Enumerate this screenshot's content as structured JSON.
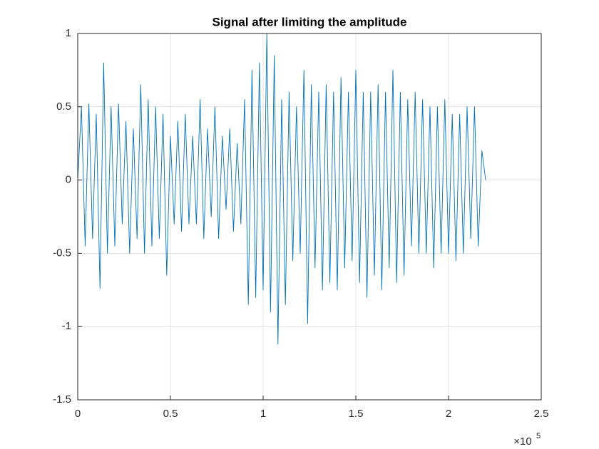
{
  "chart_data": {
    "type": "line",
    "title": "Signal after limiting the amplitude",
    "x": [
      0,
      0.02,
      0.04,
      0.06,
      0.08,
      0.1,
      0.12,
      0.14,
      0.16,
      0.18,
      0.2,
      0.22,
      0.24,
      0.26,
      0.28,
      0.3,
      0.32,
      0.34,
      0.36,
      0.38,
      0.4,
      0.42,
      0.44,
      0.46,
      0.48,
      0.5,
      0.52,
      0.54,
      0.56,
      0.58,
      0.6,
      0.62,
      0.64,
      0.66,
      0.68,
      0.7,
      0.72,
      0.74,
      0.76,
      0.78,
      0.8,
      0.82,
      0.84,
      0.86,
      0.88,
      0.9,
      0.92,
      0.94,
      0.96,
      0.98,
      1,
      1.02,
      1.04,
      1.06,
      1.08,
      1.1,
      1.12,
      1.14,
      1.16,
      1.18,
      1.2,
      1.22,
      1.24,
      1.26,
      1.28,
      1.3,
      1.32,
      1.34,
      1.36,
      1.38,
      1.4,
      1.42,
      1.44,
      1.46,
      1.48,
      1.5,
      1.52,
      1.54,
      1.56,
      1.58,
      1.6,
      1.62,
      1.64,
      1.66,
      1.68,
      1.7,
      1.72,
      1.74,
      1.76,
      1.78,
      1.8,
      1.82,
      1.84,
      1.86,
      1.88,
      1.9,
      1.92,
      1.94,
      1.96,
      1.98,
      2,
      2.02,
      2.04,
      2.06,
      2.08,
      2.1,
      2.12,
      2.14,
      2.16,
      2.18,
      2.2
    ],
    "values": [
      0,
      0.5,
      -0.45,
      0.52,
      -0.4,
      0.45,
      -0.74,
      0.8,
      -0.5,
      0.5,
      -0.45,
      0.52,
      -0.3,
      0.4,
      -0.5,
      0.35,
      -0.4,
      0.65,
      -0.5,
      0.55,
      -0.45,
      0.5,
      -0.4,
      0.45,
      -0.65,
      0.3,
      -0.3,
      0.4,
      -0.35,
      0.45,
      -0.3,
      0.3,
      -0.3,
      0.55,
      -0.4,
      0.35,
      -0.25,
      0.5,
      -0.4,
      0.3,
      -0.2,
      0.35,
      -0.35,
      0.25,
      -0.3,
      0.55,
      -0.85,
      0.75,
      -0.8,
      0.8,
      -0.75,
      1,
      -0.9,
      0.85,
      -1.12,
      0.55,
      -0.85,
      0.6,
      -0.55,
      0.5,
      -0.5,
      0.75,
      -0.98,
      0.65,
      -0.6,
      0.6,
      -0.75,
      0.65,
      -0.7,
      0.6,
      -0.75,
      0.7,
      -0.6,
      0.6,
      -0.55,
      0.75,
      -0.7,
      0.6,
      -0.8,
      0.6,
      -0.65,
      0.65,
      -0.75,
      0.6,
      -0.6,
      0.75,
      -0.7,
      0.6,
      -0.65,
      0.55,
      -0.45,
      0.6,
      -0.5,
      0.55,
      -0.5,
      0.5,
      -0.6,
      0.5,
      -0.5,
      0.55,
      -0.5,
      0.45,
      -0.55,
      0.45,
      -0.5,
      0.5,
      -0.4,
      0.5,
      -0.45,
      0.2,
      0
    ],
    "color": "#0072bd",
    "xlim": [
      0,
      2.5
    ],
    "ylim": [
      -1.5,
      1
    ],
    "xticks": [
      0,
      0.5,
      1,
      1.5,
      2,
      2.5
    ],
    "yticks": [
      -1.5,
      -1,
      -0.5,
      0,
      0.5,
      1
    ],
    "x_multiplier": "×10",
    "x_exponent": "5",
    "grid": true
  }
}
